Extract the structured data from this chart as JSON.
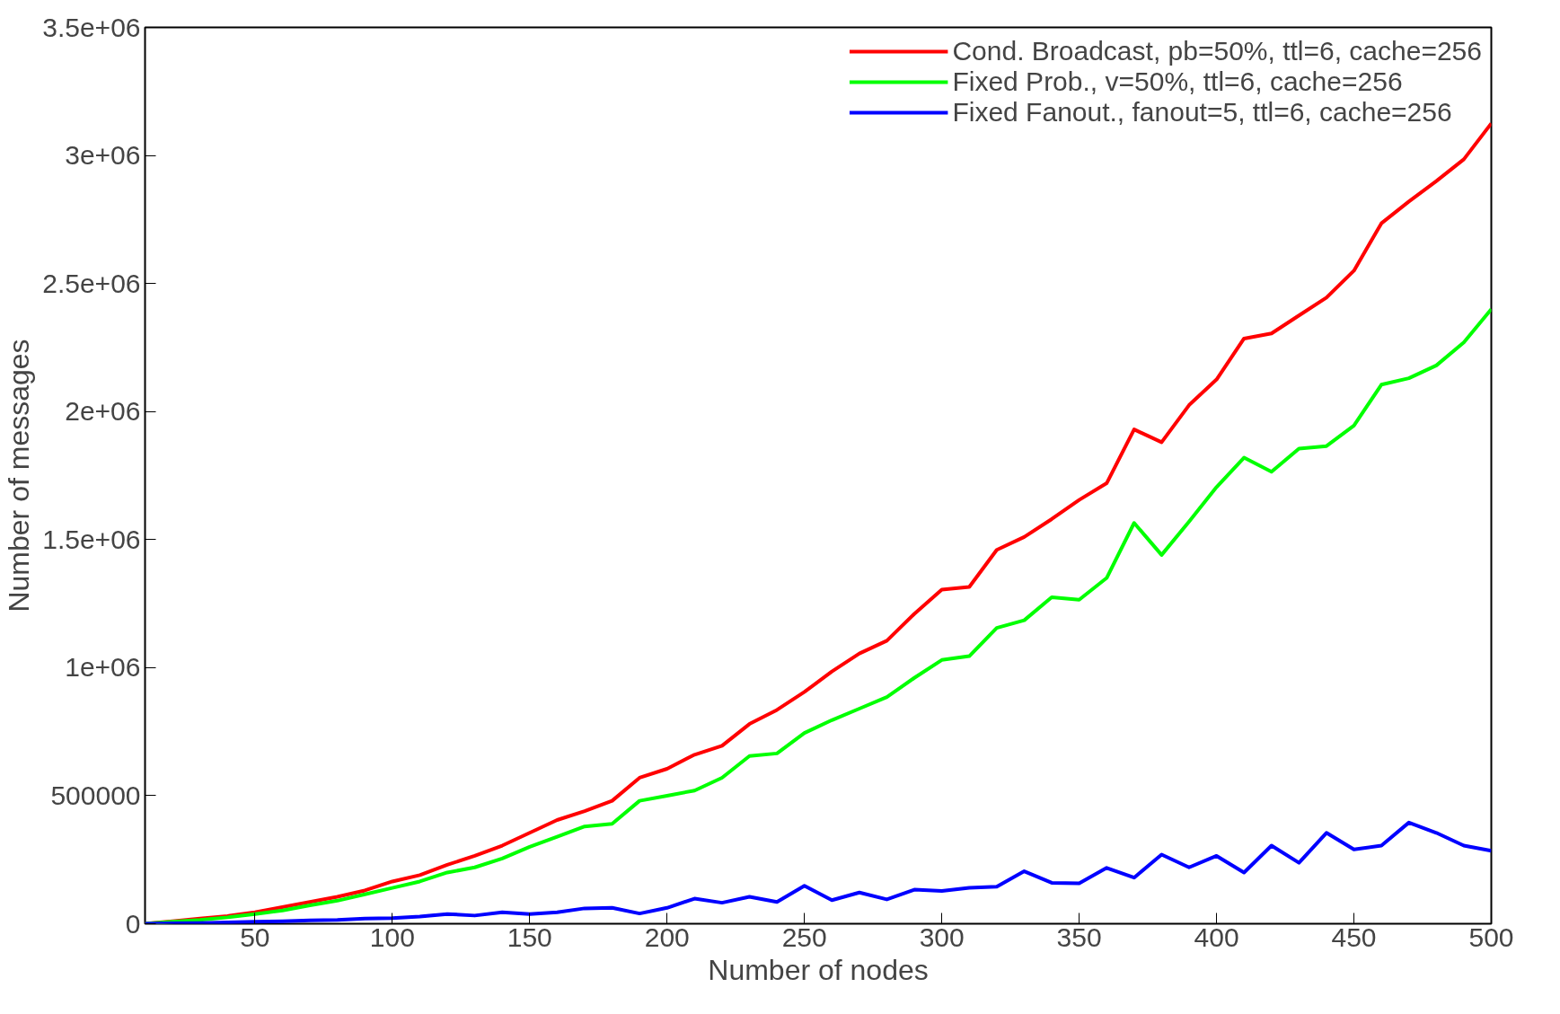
{
  "chart_data": {
    "type": "line",
    "xlabel": "Number of nodes",
    "ylabel": "Number of messages",
    "x": [
      10,
      20,
      30,
      40,
      50,
      60,
      70,
      80,
      90,
      100,
      110,
      120,
      130,
      140,
      150,
      160,
      170,
      180,
      190,
      200,
      210,
      220,
      230,
      240,
      250,
      260,
      270,
      280,
      290,
      300,
      310,
      320,
      330,
      340,
      350,
      360,
      370,
      380,
      390,
      400,
      410,
      420,
      430,
      440,
      450,
      460,
      470,
      480,
      490,
      500
    ],
    "series": [
      {
        "name": "Cond. Broadcast, pb=50%, ttl=6, cache=256",
        "color": "#ff0000",
        "values": [
          0,
          10000,
          20000,
          30000,
          45000,
          65000,
          85000,
          105000,
          130000,
          165000,
          190000,
          230000,
          265000,
          305000,
          355000,
          405000,
          440000,
          480000,
          570000,
          605000,
          660000,
          695000,
          780000,
          835000,
          905000,
          985000,
          1055000,
          1105000,
          1210000,
          1305000,
          1315000,
          1460000,
          1510000,
          1580000,
          1655000,
          1720000,
          1930000,
          1880000,
          2025000,
          2125000,
          2285000,
          2305000,
          2375000,
          2445000,
          2550000,
          2735000,
          2820000,
          2900000,
          2985000,
          3125000
        ]
      },
      {
        "name": "Fixed Prob., v=50%, ttl=6, cache=256",
        "color": "#00ff00",
        "values": [
          0,
          8000,
          15000,
          25000,
          38000,
          52000,
          72000,
          90000,
          115000,
          140000,
          165000,
          200000,
          220000,
          255000,
          300000,
          340000,
          380000,
          390000,
          480000,
          500000,
          520000,
          570000,
          655000,
          665000,
          745000,
          795000,
          840000,
          885000,
          960000,
          1030000,
          1045000,
          1155000,
          1185000,
          1275000,
          1265000,
          1350000,
          1565000,
          1440000,
          1570000,
          1705000,
          1820000,
          1765000,
          1855000,
          1865000,
          1945000,
          2105000,
          2130000,
          2180000,
          2270000,
          2400000
        ]
      },
      {
        "name": "Fixed Fanout., fanout=5, ttl=6, cache=256",
        "color": "#0000ff",
        "values": [
          0,
          2000,
          3000,
          5000,
          8000,
          10000,
          13000,
          15000,
          20000,
          22000,
          28000,
          38000,
          32000,
          45000,
          38000,
          45000,
          60000,
          62000,
          40000,
          62000,
          98000,
          82000,
          105000,
          85000,
          148000,
          92000,
          122000,
          95000,
          133000,
          128000,
          140000,
          145000,
          205000,
          160000,
          158000,
          218000,
          180000,
          270000,
          220000,
          265000,
          200000,
          305000,
          238000,
          355000,
          290000,
          305000,
          395000,
          355000,
          305000,
          285000
        ]
      }
    ],
    "xlim": [
      10,
      500
    ],
    "ylim": [
      0,
      3500000
    ],
    "xticks": [
      50,
      100,
      150,
      200,
      250,
      300,
      350,
      400,
      450,
      500
    ],
    "yticks": [
      0,
      500000,
      {
        "value": 1000000,
        "label": "1e+06"
      },
      {
        "value": 1500000,
        "label": "1.5e+06"
      },
      {
        "value": 2000000,
        "label": "2e+06"
      },
      {
        "value": 2500000,
        "label": "2.5e+06"
      },
      {
        "value": 3000000,
        "label": "3e+06"
      },
      {
        "value": 3500000,
        "label": "3.5e+06"
      }
    ],
    "legend": "top right",
    "grid": false,
    "line_style": "solid",
    "marker": "none"
  }
}
